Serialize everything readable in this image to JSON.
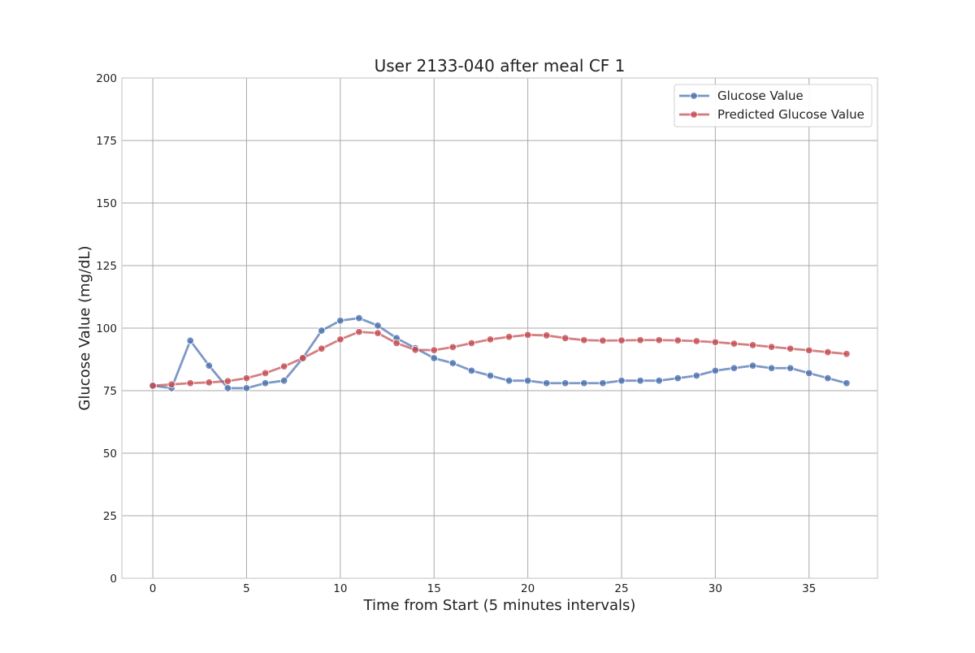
{
  "chart_data": {
    "type": "line",
    "title": "User 2133-040 after meal CF 1",
    "xlabel": "Time from Start (5 minutes intervals)",
    "ylabel": "Glucose Value (mg/dL)",
    "xlim": [
      -1.65,
      38.65
    ],
    "ylim": [
      0,
      200
    ],
    "x_ticks": [
      0,
      5,
      10,
      15,
      20,
      25,
      30,
      35
    ],
    "y_ticks": [
      0,
      25,
      50,
      75,
      100,
      125,
      150,
      175,
      200
    ],
    "grid": true,
    "legend_position": "top-right",
    "x": [
      0,
      1,
      2,
      3,
      4,
      5,
      6,
      7,
      8,
      9,
      10,
      11,
      12,
      13,
      14,
      15,
      16,
      17,
      18,
      19,
      20,
      21,
      22,
      23,
      24,
      25,
      26,
      27,
      28,
      29,
      30,
      31,
      32,
      33,
      34,
      35,
      36,
      37
    ],
    "series": [
      {
        "name": "Glucose Value",
        "color": "#4c72b0",
        "values": [
          77,
          76,
          95,
          85,
          76,
          76,
          78,
          79,
          88,
          99,
          103,
          104,
          101,
          96,
          92,
          88,
          86,
          83,
          81,
          79,
          79,
          78,
          78,
          78,
          78,
          79,
          79,
          79,
          80,
          81,
          83,
          84,
          85,
          84,
          84,
          82,
          80,
          78
        ]
      },
      {
        "name": "Predicted Glucose Value",
        "color": "#c44e52",
        "values": [
          77,
          77.5,
          78,
          78.3,
          78.8,
          80,
          82,
          84.7,
          88,
          91.8,
          95.5,
          98.5,
          98,
          94,
          91.3,
          91.2,
          92.4,
          94,
          95.5,
          96.5,
          97.3,
          97.1,
          96,
          95.2,
          95,
          95.1,
          95.2,
          95.2,
          95.1,
          94.8,
          94.4,
          93.8,
          93.2,
          92.5,
          91.8,
          91.1,
          90.4,
          89.7
        ]
      }
    ]
  }
}
